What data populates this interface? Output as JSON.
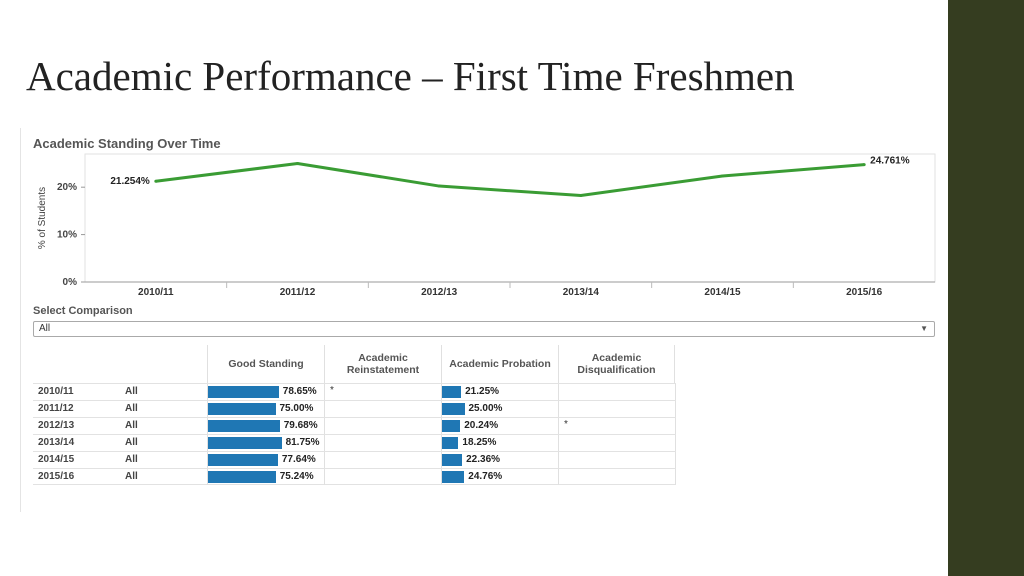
{
  "slide": {
    "title": "Academic Performance – First Time Freshmen"
  },
  "chart_data": {
    "type": "line",
    "title": "Academic Standing Over Time",
    "ylabel": "% of Students",
    "xlabel": "",
    "categories": [
      "2010/11",
      "2011/12",
      "2012/13",
      "2013/14",
      "2014/15",
      "2015/16"
    ],
    "series": [
      {
        "values": [
          21.254,
          25.0,
          20.24,
          18.25,
          22.36,
          24.761
        ],
        "color": "#3a9c34"
      }
    ],
    "point_labels": [
      {
        "index": 0,
        "text": "21.254%"
      },
      {
        "index": 5,
        "text": "24.761%"
      }
    ],
    "yticks": [
      {
        "value": 0,
        "label": "0%"
      },
      {
        "value": 10,
        "label": "10%"
      },
      {
        "value": 20,
        "label": "20%"
      }
    ],
    "ylim": [
      0,
      27
    ],
    "grid": false,
    "legend": "none"
  },
  "filter": {
    "label": "Select Comparison",
    "selected": "All"
  },
  "table": {
    "headers": [
      "Good Standing",
      "Academic Reinstatement",
      "Academic Probation",
      "Academic Disqualification"
    ],
    "max_value": 100,
    "bar_color": "#1f77b4",
    "rows": [
      {
        "year": "2010/11",
        "group": "All",
        "good": "78.65%",
        "good_value": 78.65,
        "reinstatement": "*",
        "probation": "21.25%",
        "probation_value": 21.25,
        "disqualification": ""
      },
      {
        "year": "2011/12",
        "group": "All",
        "good": "75.00%",
        "good_value": 75.0,
        "reinstatement": "",
        "probation": "25.00%",
        "probation_value": 25.0,
        "disqualification": ""
      },
      {
        "year": "2012/13",
        "group": "All",
        "good": "79.68%",
        "good_value": 79.68,
        "reinstatement": "",
        "probation": "20.24%",
        "probation_value": 20.24,
        "disqualification": "*"
      },
      {
        "year": "2013/14",
        "group": "All",
        "good": "81.75%",
        "good_value": 81.75,
        "reinstatement": "",
        "probation": "18.25%",
        "probation_value": 18.25,
        "disqualification": ""
      },
      {
        "year": "2014/15",
        "group": "All",
        "good": "77.64%",
        "good_value": 77.64,
        "reinstatement": "",
        "probation": "22.36%",
        "probation_value": 22.36,
        "disqualification": ""
      },
      {
        "year": "2015/16",
        "group": "All",
        "good": "75.24%",
        "good_value": 75.24,
        "reinstatement": "",
        "probation": "24.76%",
        "probation_value": 24.76,
        "disqualification": ""
      }
    ]
  }
}
